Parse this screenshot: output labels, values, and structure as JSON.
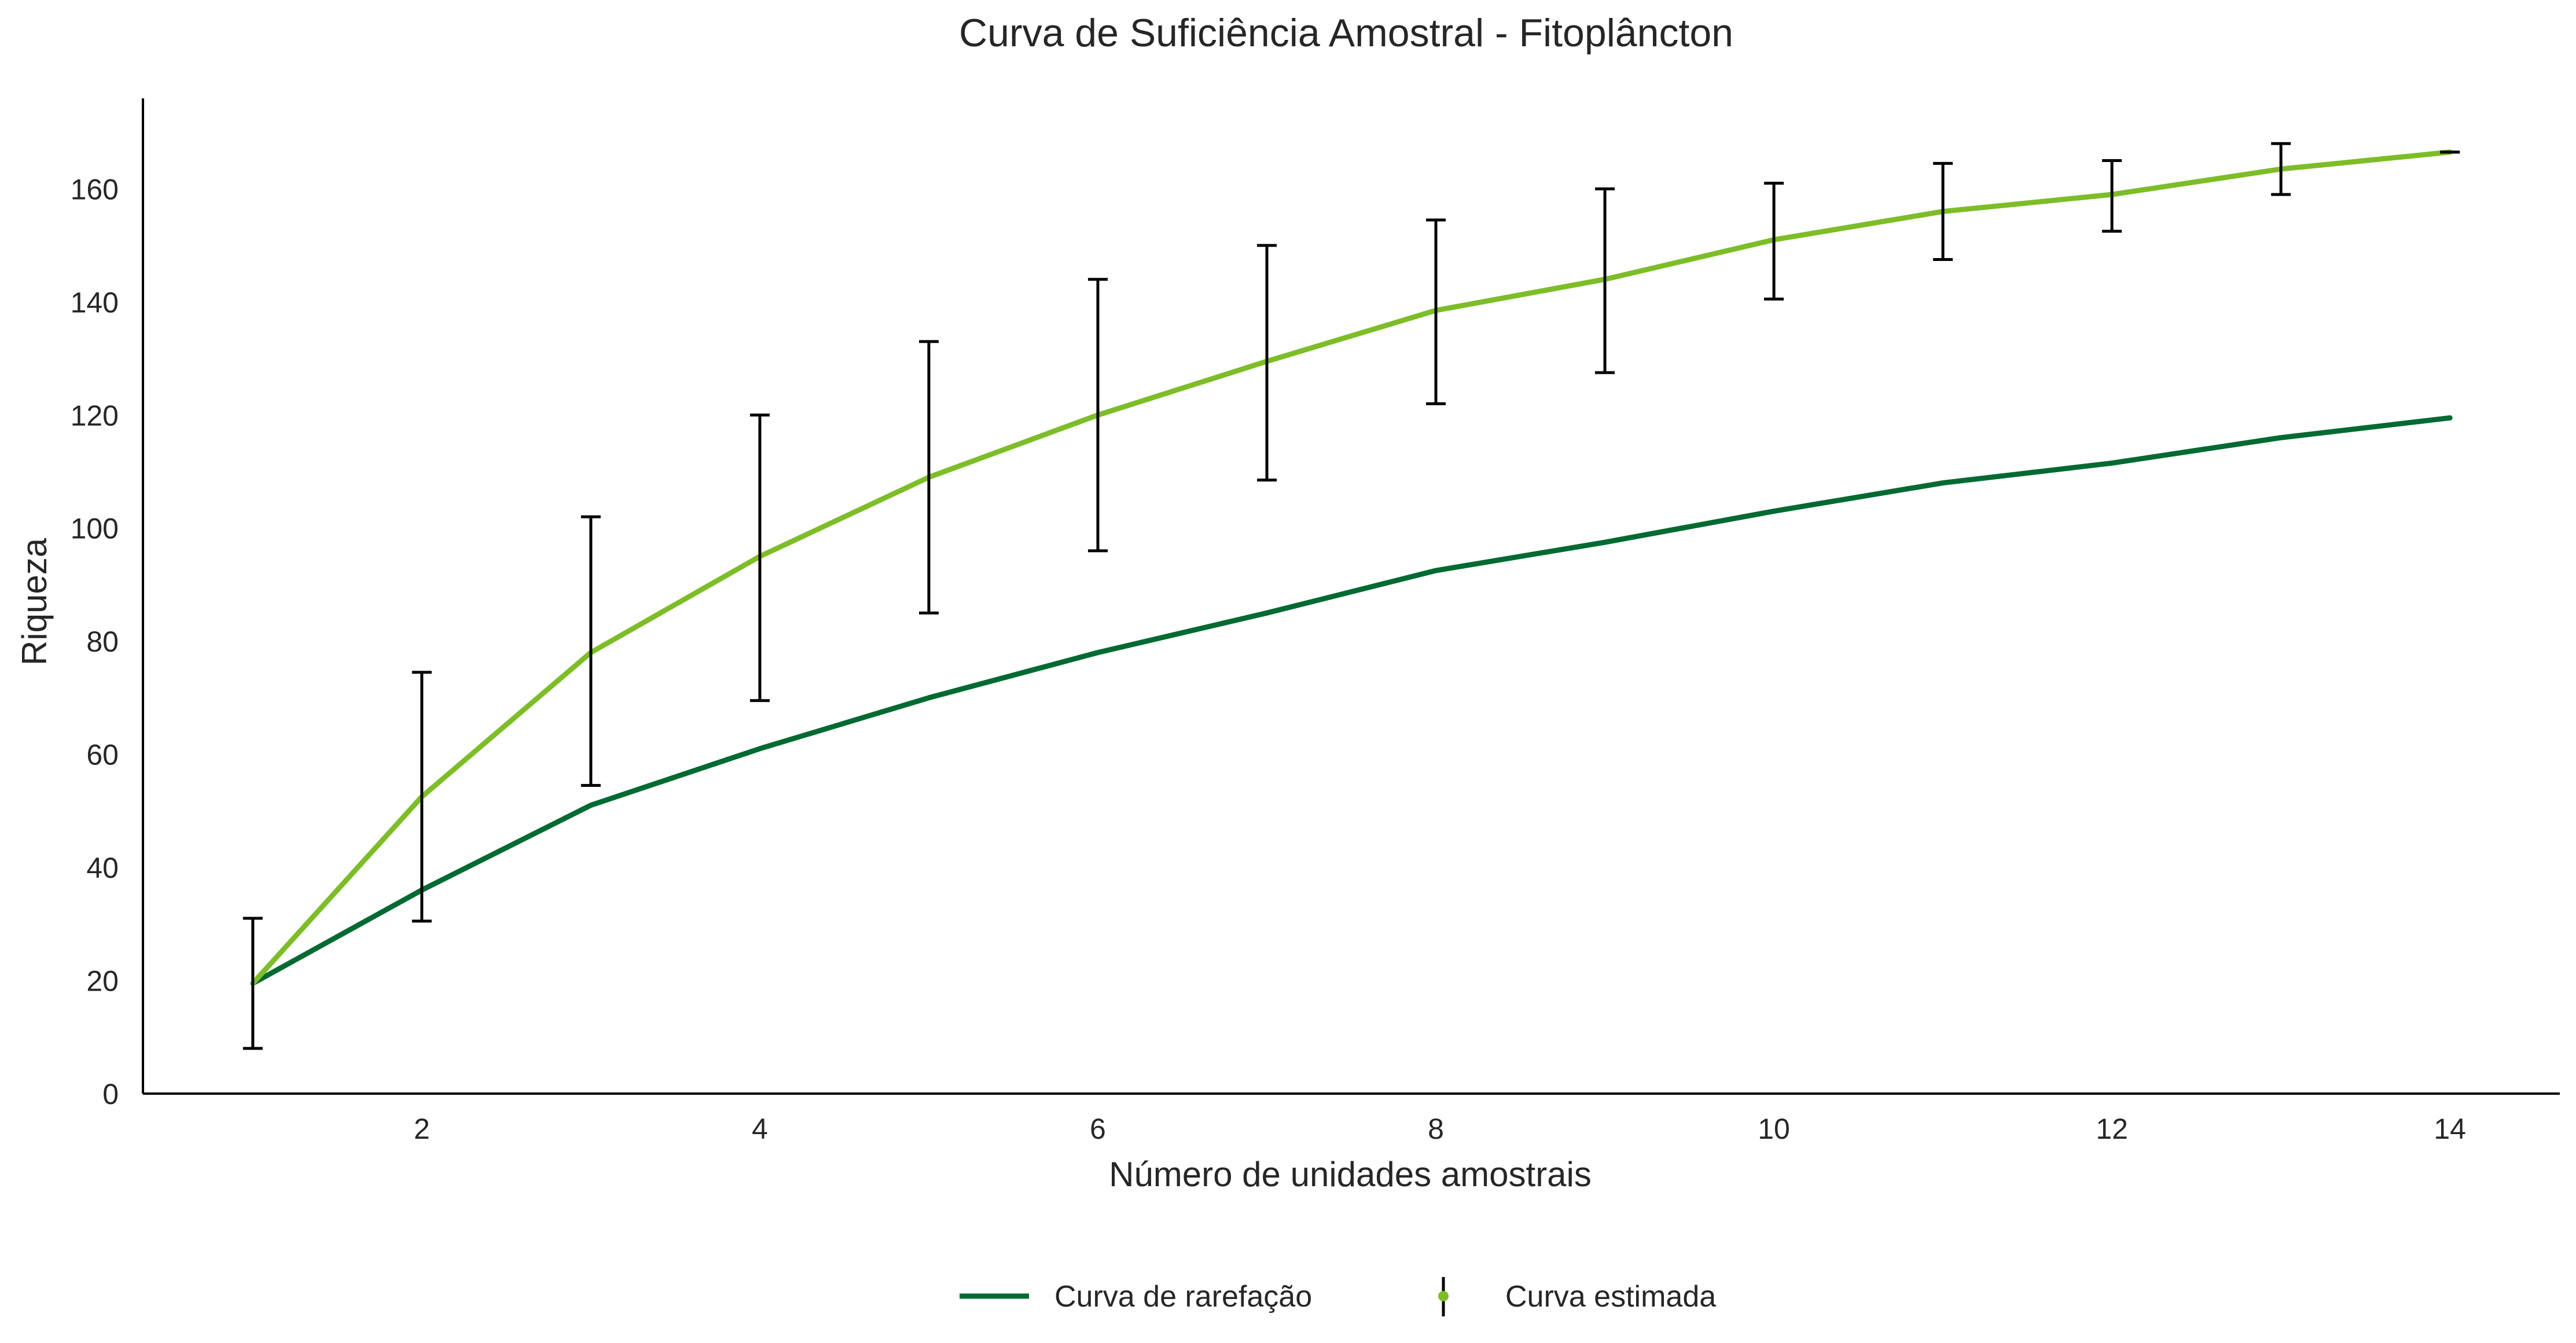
{
  "chart_data": {
    "type": "line",
    "title": "Curva de Suficiência Amostral - Fitoplâncton",
    "xlabel": "Número de unidades amostrais",
    "ylabel": "Riqueza",
    "xlim": [
      0.35,
      14.65
    ],
    "ylim": [
      0,
      176
    ],
    "xticks": [
      2,
      4,
      6,
      8,
      10,
      12,
      14
    ],
    "yticks": [
      0,
      20,
      40,
      60,
      80,
      100,
      120,
      140,
      160
    ],
    "grid": false,
    "legend_placement": "bottom-center",
    "x": [
      1,
      2,
      3,
      4,
      5,
      6,
      7,
      8,
      9,
      10,
      11,
      12,
      13,
      14
    ],
    "series": [
      {
        "name": "Curva de rarefação",
        "color": "#006a32",
        "values": [
          19.5,
          36,
          51,
          61,
          70,
          78,
          85,
          92.5,
          97.5,
          103,
          108,
          111.5,
          116,
          119.5
        ]
      },
      {
        "name": "Curva estimada",
        "color": "#7dbd28",
        "values": [
          19.5,
          52.5,
          78,
          95,
          109,
          120,
          129.5,
          138.5,
          144,
          151,
          156,
          159,
          163.5,
          166.5
        ],
        "error_low": [
          8,
          30.5,
          54.5,
          69.5,
          85,
          96,
          108.5,
          122,
          127.5,
          140.5,
          147.5,
          152.5,
          159,
          166.5
        ],
        "error_high": [
          31,
          74.5,
          102,
          120,
          133,
          144,
          150,
          154.5,
          160,
          161,
          164.5,
          165,
          168,
          166.5
        ]
      }
    ],
    "errorbar_color": "#000000"
  }
}
